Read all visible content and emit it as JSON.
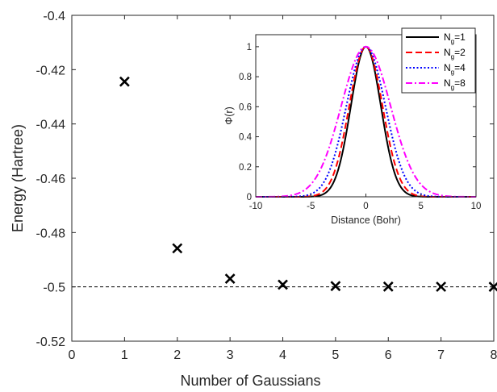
{
  "chart_data": [
    {
      "type": "scatter",
      "title": "",
      "xlabel": "Number of Gaussians",
      "ylabel": "Energy (Hartree)",
      "xlim": [
        0,
        8
      ],
      "ylim": [
        -0.52,
        -0.4
      ],
      "xticks": [
        0,
        1,
        2,
        3,
        4,
        5,
        6,
        7,
        8
      ],
      "yticks": [
        -0.52,
        -0.5,
        -0.48,
        -0.46,
        -0.44,
        -0.42,
        -0.4
      ],
      "xtick_labels": [
        "0",
        "1",
        "2",
        "3",
        "4",
        "5",
        "6",
        "7",
        "8"
      ],
      "ytick_labels": [
        "-0.52",
        "-0.5",
        "-0.48",
        "-0.46",
        "-0.44",
        "-0.42",
        "-0.4"
      ],
      "marker": "x",
      "marker_color": "#000000",
      "x": [
        1,
        2,
        3,
        4,
        5,
        6,
        7,
        8
      ],
      "y": [
        -0.4244,
        -0.4858,
        -0.497,
        -0.4992,
        -0.4997,
        -0.4999,
        -0.49995,
        -0.49998
      ],
      "reference_line": {
        "y": -0.5,
        "style": "dashed",
        "color": "#000000"
      },
      "grid": false
    },
    {
      "type": "line",
      "title": "",
      "xlabel": "Distance (Bohr)",
      "ylabel": "Φ(r)",
      "xlim": [
        -10,
        10
      ],
      "ylim": [
        0,
        1.08
      ],
      "xticks": [
        -10,
        -5,
        0,
        5,
        10
      ],
      "yticks": [
        0,
        0.2,
        0.4,
        0.6,
        0.8,
        1
      ],
      "xtick_labels": [
        "-10",
        "-5",
        "0",
        "5",
        "10"
      ],
      "ytick_labels": [
        "0",
        "0.2",
        "0.4",
        "0.6",
        "0.8",
        "1"
      ],
      "legend_position": "top-right",
      "grid": false,
      "series": [
        {
          "name": "N_g=1",
          "label_main": "N",
          "label_sub": "g",
          "label_rest": "=1",
          "color": "#000000",
          "style": "solid",
          "alpha": 0.271
        },
        {
          "name": "N_g=2",
          "label_main": "N",
          "label_sub": "g",
          "label_rest": "=2",
          "color": "#ff0000",
          "style": "dashed",
          "alpha": 0.22
        },
        {
          "name": "N_g=4",
          "label_main": "N",
          "label_sub": "g",
          "label_rest": "=4",
          "color": "#0000ff",
          "style": "dotted",
          "alpha": 0.16
        },
        {
          "name": "N_g=8",
          "label_main": "N",
          "label_sub": "g",
          "label_rest": "=8",
          "color": "#ff00ff",
          "style": "dashdot",
          "alpha": 0.1
        }
      ]
    }
  ]
}
